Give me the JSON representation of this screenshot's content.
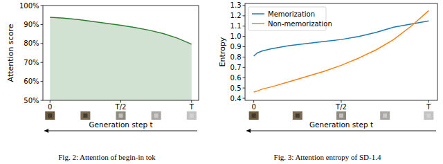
{
  "chart_data": [
    {
      "type": "area",
      "y_label": "Attention score",
      "x_label": "Generation step t",
      "caption": "Fig. 2: Attention of begin-in tok",
      "x": [
        0,
        0.1,
        0.2,
        0.3,
        0.4,
        0.5,
        0.6,
        0.7,
        0.8,
        0.9,
        1.0
      ],
      "values": [
        93.8,
        93.3,
        92.6,
        91.6,
        90.6,
        89.6,
        88.4,
        87.0,
        85.2,
        82.8,
        79.6
      ],
      "color": "#2e7d32",
      "xlim": [
        -0.05,
        1.05
      ],
      "xticks": [
        0,
        {
          "value": 0.5,
          "label": "T/2"
        },
        {
          "value": 1,
          "label": "T"
        }
      ],
      "ylim": [
        50,
        100
      ],
      "yticks": [
        {
          "value": 50,
          "label": "50%"
        },
        {
          "value": 60,
          "label": "60%"
        },
        {
          "value": 70,
          "label": "70%"
        },
        {
          "value": 80,
          "label": "80%"
        },
        {
          "value": 90,
          "label": "90%"
        },
        {
          "value": 100,
          "label": "100%"
        }
      ],
      "grid": false
    },
    {
      "type": "line",
      "y_label": "Entropy",
      "x_label": "Generation step t",
      "caption": "Fig. 3: Attention entropy of SD-1.4",
      "x": [
        0,
        0.02,
        0.05,
        0.1,
        0.2,
        0.3,
        0.4,
        0.5,
        0.6,
        0.7,
        0.8,
        0.9,
        1.0
      ],
      "series": [
        {
          "name": "Memorization",
          "color": "#1f77b4",
          "values": [
            0.81,
            0.84,
            0.86,
            0.88,
            0.91,
            0.93,
            0.95,
            0.97,
            1.0,
            1.04,
            1.09,
            1.12,
            1.15
          ]
        },
        {
          "name": "Non-memorization",
          "color": "#ff7f0e",
          "values": [
            0.46,
            0.47,
            0.49,
            0.51,
            0.56,
            0.61,
            0.66,
            0.72,
            0.79,
            0.87,
            0.97,
            1.1,
            1.25
          ]
        }
      ],
      "xlim": [
        -0.05,
        1.05
      ],
      "xticks": [
        0,
        {
          "value": 0.5,
          "label": "T/2"
        },
        {
          "value": 1,
          "label": "T"
        }
      ],
      "ylim": [
        0.38,
        1.32
      ],
      "yticks": [
        0.4,
        0.5,
        0.6,
        0.7,
        0.8,
        0.9,
        {
          "value": 1,
          "label": "1.0"
        },
        1.1,
        1.2,
        1.3
      ],
      "legend": "upper left",
      "grid": false
    }
  ]
}
